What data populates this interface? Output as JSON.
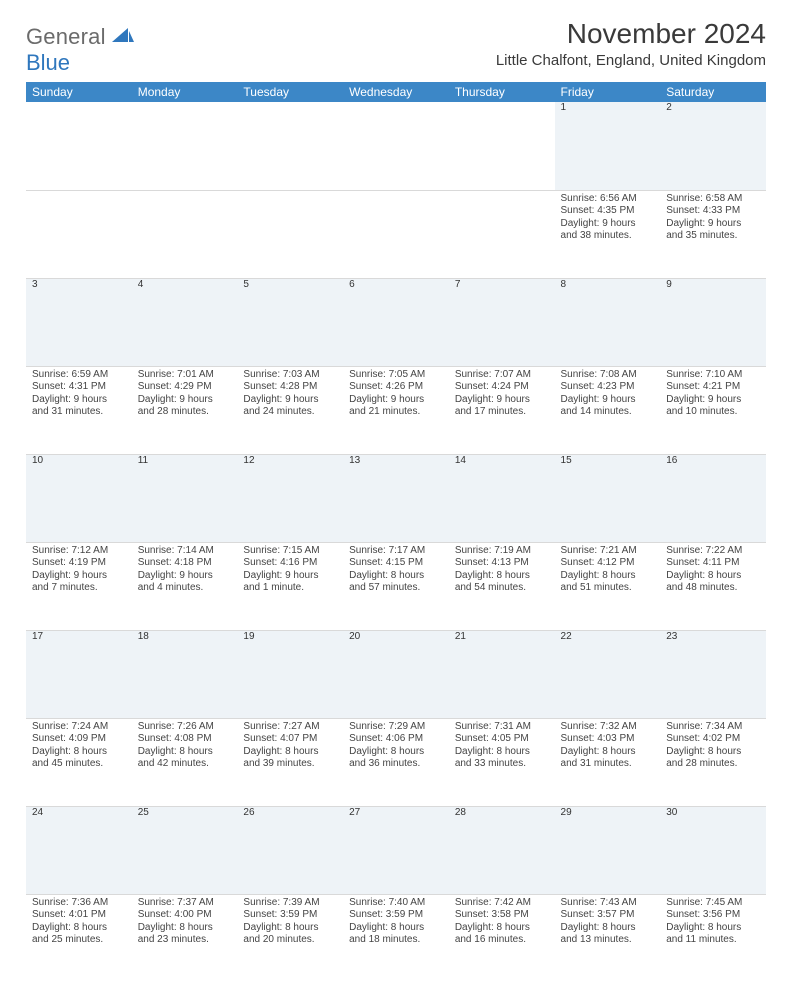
{
  "logo": {
    "word1": "General",
    "word2": "Blue"
  },
  "header": {
    "title": "November 2024",
    "location": "Little Chalfont, England, United Kingdom"
  },
  "colors": {
    "header_bg": "#3c87c7",
    "header_text": "#ffffff",
    "daynum_bg": "#eef3f7",
    "body_text": "#333333",
    "page_bg": "#ffffff",
    "rule": "#d9d9d9",
    "logo_grey": "#6b6b6b",
    "logo_blue": "#2f77bd"
  },
  "weekdays": [
    "Sunday",
    "Monday",
    "Tuesday",
    "Wednesday",
    "Thursday",
    "Friday",
    "Saturday"
  ],
  "weeks": [
    {
      "nums": [
        "",
        "",
        "",
        "",
        "",
        "1",
        "2"
      ],
      "cells": [
        {
          "sunrise": "",
          "sunset": "",
          "daylight": ""
        },
        {
          "sunrise": "",
          "sunset": "",
          "daylight": ""
        },
        {
          "sunrise": "",
          "sunset": "",
          "daylight": ""
        },
        {
          "sunrise": "",
          "sunset": "",
          "daylight": ""
        },
        {
          "sunrise": "",
          "sunset": "",
          "daylight": ""
        },
        {
          "sunrise": "Sunrise: 6:56 AM",
          "sunset": "Sunset: 4:35 PM",
          "daylight": "Daylight: 9 hours and 38 minutes."
        },
        {
          "sunrise": "Sunrise: 6:58 AM",
          "sunset": "Sunset: 4:33 PM",
          "daylight": "Daylight: 9 hours and 35 minutes."
        }
      ]
    },
    {
      "nums": [
        "3",
        "4",
        "5",
        "6",
        "7",
        "8",
        "9"
      ],
      "cells": [
        {
          "sunrise": "Sunrise: 6:59 AM",
          "sunset": "Sunset: 4:31 PM",
          "daylight": "Daylight: 9 hours and 31 minutes."
        },
        {
          "sunrise": "Sunrise: 7:01 AM",
          "sunset": "Sunset: 4:29 PM",
          "daylight": "Daylight: 9 hours and 28 minutes."
        },
        {
          "sunrise": "Sunrise: 7:03 AM",
          "sunset": "Sunset: 4:28 PM",
          "daylight": "Daylight: 9 hours and 24 minutes."
        },
        {
          "sunrise": "Sunrise: 7:05 AM",
          "sunset": "Sunset: 4:26 PM",
          "daylight": "Daylight: 9 hours and 21 minutes."
        },
        {
          "sunrise": "Sunrise: 7:07 AM",
          "sunset": "Sunset: 4:24 PM",
          "daylight": "Daylight: 9 hours and 17 minutes."
        },
        {
          "sunrise": "Sunrise: 7:08 AM",
          "sunset": "Sunset: 4:23 PM",
          "daylight": "Daylight: 9 hours and 14 minutes."
        },
        {
          "sunrise": "Sunrise: 7:10 AM",
          "sunset": "Sunset: 4:21 PM",
          "daylight": "Daylight: 9 hours and 10 minutes."
        }
      ]
    },
    {
      "nums": [
        "10",
        "11",
        "12",
        "13",
        "14",
        "15",
        "16"
      ],
      "cells": [
        {
          "sunrise": "Sunrise: 7:12 AM",
          "sunset": "Sunset: 4:19 PM",
          "daylight": "Daylight: 9 hours and 7 minutes."
        },
        {
          "sunrise": "Sunrise: 7:14 AM",
          "sunset": "Sunset: 4:18 PM",
          "daylight": "Daylight: 9 hours and 4 minutes."
        },
        {
          "sunrise": "Sunrise: 7:15 AM",
          "sunset": "Sunset: 4:16 PM",
          "daylight": "Daylight: 9 hours and 1 minute."
        },
        {
          "sunrise": "Sunrise: 7:17 AM",
          "sunset": "Sunset: 4:15 PM",
          "daylight": "Daylight: 8 hours and 57 minutes."
        },
        {
          "sunrise": "Sunrise: 7:19 AM",
          "sunset": "Sunset: 4:13 PM",
          "daylight": "Daylight: 8 hours and 54 minutes."
        },
        {
          "sunrise": "Sunrise: 7:21 AM",
          "sunset": "Sunset: 4:12 PM",
          "daylight": "Daylight: 8 hours and 51 minutes."
        },
        {
          "sunrise": "Sunrise: 7:22 AM",
          "sunset": "Sunset: 4:11 PM",
          "daylight": "Daylight: 8 hours and 48 minutes."
        }
      ]
    },
    {
      "nums": [
        "17",
        "18",
        "19",
        "20",
        "21",
        "22",
        "23"
      ],
      "cells": [
        {
          "sunrise": "Sunrise: 7:24 AM",
          "sunset": "Sunset: 4:09 PM",
          "daylight": "Daylight: 8 hours and 45 minutes."
        },
        {
          "sunrise": "Sunrise: 7:26 AM",
          "sunset": "Sunset: 4:08 PM",
          "daylight": "Daylight: 8 hours and 42 minutes."
        },
        {
          "sunrise": "Sunrise: 7:27 AM",
          "sunset": "Sunset: 4:07 PM",
          "daylight": "Daylight: 8 hours and 39 minutes."
        },
        {
          "sunrise": "Sunrise: 7:29 AM",
          "sunset": "Sunset: 4:06 PM",
          "daylight": "Daylight: 8 hours and 36 minutes."
        },
        {
          "sunrise": "Sunrise: 7:31 AM",
          "sunset": "Sunset: 4:05 PM",
          "daylight": "Daylight: 8 hours and 33 minutes."
        },
        {
          "sunrise": "Sunrise: 7:32 AM",
          "sunset": "Sunset: 4:03 PM",
          "daylight": "Daylight: 8 hours and 31 minutes."
        },
        {
          "sunrise": "Sunrise: 7:34 AM",
          "sunset": "Sunset: 4:02 PM",
          "daylight": "Daylight: 8 hours and 28 minutes."
        }
      ]
    },
    {
      "nums": [
        "24",
        "25",
        "26",
        "27",
        "28",
        "29",
        "30"
      ],
      "cells": [
        {
          "sunrise": "Sunrise: 7:36 AM",
          "sunset": "Sunset: 4:01 PM",
          "daylight": "Daylight: 8 hours and 25 minutes."
        },
        {
          "sunrise": "Sunrise: 7:37 AM",
          "sunset": "Sunset: 4:00 PM",
          "daylight": "Daylight: 8 hours and 23 minutes."
        },
        {
          "sunrise": "Sunrise: 7:39 AM",
          "sunset": "Sunset: 3:59 PM",
          "daylight": "Daylight: 8 hours and 20 minutes."
        },
        {
          "sunrise": "Sunrise: 7:40 AM",
          "sunset": "Sunset: 3:59 PM",
          "daylight": "Daylight: 8 hours and 18 minutes."
        },
        {
          "sunrise": "Sunrise: 7:42 AM",
          "sunset": "Sunset: 3:58 PM",
          "daylight": "Daylight: 8 hours and 16 minutes."
        },
        {
          "sunrise": "Sunrise: 7:43 AM",
          "sunset": "Sunset: 3:57 PM",
          "daylight": "Daylight: 8 hours and 13 minutes."
        },
        {
          "sunrise": "Sunrise: 7:45 AM",
          "sunset": "Sunset: 3:56 PM",
          "daylight": "Daylight: 8 hours and 11 minutes."
        }
      ]
    }
  ]
}
